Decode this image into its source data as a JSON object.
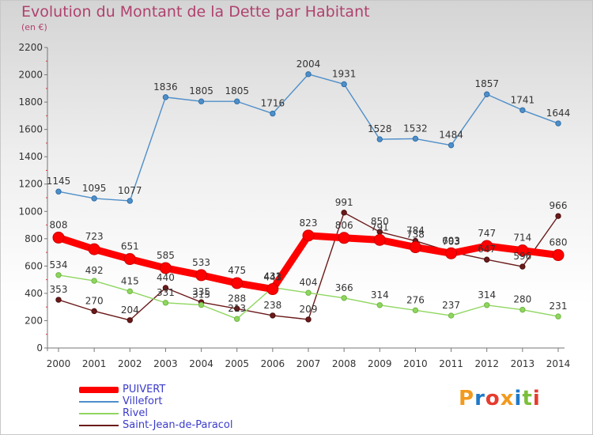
{
  "header": {
    "title": "Evolution du Montant de la Dette par Habitant",
    "subtitle": "(en €)"
  },
  "logo": {
    "text": "Proxiti"
  },
  "chart_data": {
    "type": "line",
    "title": "Evolution du Montant de la Dette par Habitant",
    "subtitle": "(en €)",
    "xlabel": "",
    "ylabel": "",
    "ylim": [
      0,
      2200
    ],
    "yticks": [
      0,
      200,
      400,
      600,
      800,
      1000,
      1200,
      1400,
      1600,
      1800,
      2000,
      2200
    ],
    "x": [
      "2000",
      "2001",
      "2002",
      "2003",
      "2004",
      "2005",
      "2006",
      "2007",
      "2008",
      "2009",
      "2010",
      "2011",
      "2012",
      "2013",
      "2014"
    ],
    "grid": false,
    "legend_position": "bottom-left",
    "series": [
      {
        "name": "PUIVERT",
        "color": "#ff0000",
        "values": [
          808,
          723,
          651,
          585,
          533,
          475,
          431,
          823,
          806,
          791,
          738,
          693,
          747,
          714,
          680
        ],
        "labels": [
          "808",
          "723",
          "651",
          "585",
          "533",
          "475",
          "431",
          "823",
          "806",
          "791",
          "738",
          "693",
          "747",
          "714",
          "680"
        ]
      },
      {
        "name": "Villefort",
        "color": "#4f8fc9",
        "values": [
          1145,
          1095,
          1077,
          1836,
          1805,
          1805,
          1716,
          2004,
          1931,
          1528,
          1532,
          1484,
          1857,
          1741,
          1644
        ],
        "labels": [
          "1145",
          "1095",
          "1077",
          "1836",
          "1805",
          "1805",
          "1716",
          "2004",
          "1931",
          "1528",
          "1532",
          "1484",
          "1857",
          "1741",
          "1644"
        ]
      },
      {
        "name": "Rivel",
        "color": "#8fd660",
        "values": [
          534,
          492,
          415,
          331,
          315,
          213,
          443,
          404,
          366,
          314,
          276,
          237,
          314,
          280,
          231
        ],
        "labels": [
          "534",
          "492",
          "415",
          "331",
          "315",
          "213",
          "443",
          "404",
          "366",
          "314",
          "276",
          "237",
          "314",
          "280",
          "231"
        ]
      },
      {
        "name": "Saint-Jean-de-Paracol",
        "color": "#6b1a1a",
        "values": [
          353,
          270,
          204,
          440,
          335,
          288,
          238,
          209,
          991,
          850,
          784,
          703,
          647,
          596,
          966
        ],
        "labels": [
          "353",
          "270",
          "204",
          "440",
          "335",
          "288",
          "238",
          "209",
          "991",
          "850",
          "784",
          "703",
          "647",
          "596",
          "966"
        ]
      }
    ]
  }
}
